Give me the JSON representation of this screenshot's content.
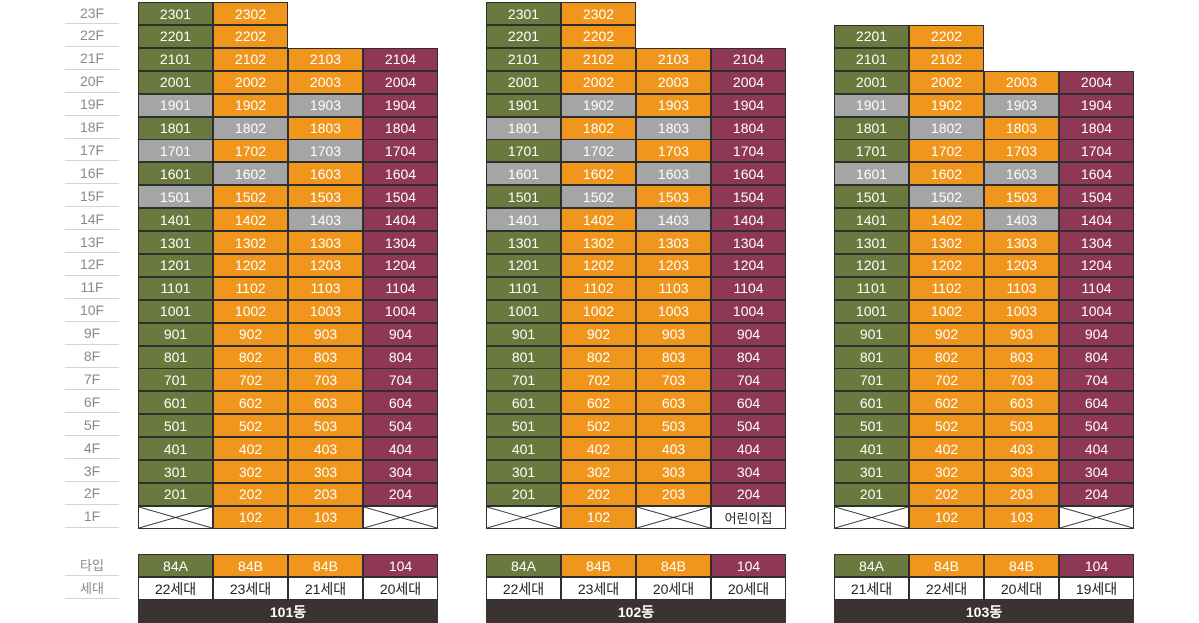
{
  "labels": {
    "type": "타입",
    "households": "세대"
  },
  "floors": [
    "23F",
    "22F",
    "21F",
    "20F",
    "19F",
    "18F",
    "17F",
    "16F",
    "15F",
    "14F",
    "13F",
    "12F",
    "11F",
    "10F",
    "9F",
    "8F",
    "7F",
    "6F",
    "5F",
    "4F",
    "3F",
    "2F",
    "1F"
  ],
  "colors": {
    "G": "#6a7a3f",
    "O": "#f0961c",
    "P": "#8e3856",
    "S": "#a5a5a5"
  },
  "buildings": [
    {
      "name": "101동",
      "types": [
        {
          "label": "84A",
          "color": "G"
        },
        {
          "label": "84B",
          "color": "O"
        },
        {
          "label": "84B",
          "color": "O"
        },
        {
          "label": "104",
          "color": "P"
        }
      ],
      "households": [
        "22세대",
        "23세대",
        "21세대",
        "20세대"
      ],
      "floors": [
        [
          [
            "2301",
            "G"
          ],
          [
            "2302",
            "O"
          ],
          null,
          null
        ],
        [
          [
            "2201",
            "G"
          ],
          [
            "2202",
            "O"
          ],
          null,
          null
        ],
        [
          [
            "2101",
            "G"
          ],
          [
            "2102",
            "O"
          ],
          [
            "2103",
            "O"
          ],
          [
            "2104",
            "P"
          ]
        ],
        [
          [
            "2001",
            "G"
          ],
          [
            "2002",
            "O"
          ],
          [
            "2003",
            "O"
          ],
          [
            "2004",
            "P"
          ]
        ],
        [
          [
            "1901",
            "S"
          ],
          [
            "1902",
            "O"
          ],
          [
            "1903",
            "S"
          ],
          [
            "1904",
            "P"
          ]
        ],
        [
          [
            "1801",
            "G"
          ],
          [
            "1802",
            "S"
          ],
          [
            "1803",
            "O"
          ],
          [
            "1804",
            "P"
          ]
        ],
        [
          [
            "1701",
            "S"
          ],
          [
            "1702",
            "O"
          ],
          [
            "1703",
            "S"
          ],
          [
            "1704",
            "P"
          ]
        ],
        [
          [
            "1601",
            "G"
          ],
          [
            "1602",
            "S"
          ],
          [
            "1603",
            "O"
          ],
          [
            "1604",
            "P"
          ]
        ],
        [
          [
            "1501",
            "S"
          ],
          [
            "1502",
            "O"
          ],
          [
            "1503",
            "O"
          ],
          [
            "1504",
            "P"
          ]
        ],
        [
          [
            "1401",
            "G"
          ],
          [
            "1402",
            "O"
          ],
          [
            "1403",
            "S"
          ],
          [
            "1404",
            "P"
          ]
        ],
        [
          [
            "1301",
            "G"
          ],
          [
            "1302",
            "O"
          ],
          [
            "1303",
            "O"
          ],
          [
            "1304",
            "P"
          ]
        ],
        [
          [
            "1201",
            "G"
          ],
          [
            "1202",
            "O"
          ],
          [
            "1203",
            "O"
          ],
          [
            "1204",
            "P"
          ]
        ],
        [
          [
            "1101",
            "G"
          ],
          [
            "1102",
            "O"
          ],
          [
            "1103",
            "O"
          ],
          [
            "1104",
            "P"
          ]
        ],
        [
          [
            "1001",
            "G"
          ],
          [
            "1002",
            "O"
          ],
          [
            "1003",
            "O"
          ],
          [
            "1004",
            "P"
          ]
        ],
        [
          [
            "901",
            "G"
          ],
          [
            "902",
            "O"
          ],
          [
            "903",
            "O"
          ],
          [
            "904",
            "P"
          ]
        ],
        [
          [
            "801",
            "G"
          ],
          [
            "802",
            "O"
          ],
          [
            "803",
            "O"
          ],
          [
            "804",
            "P"
          ]
        ],
        [
          [
            "701",
            "G"
          ],
          [
            "702",
            "O"
          ],
          [
            "703",
            "O"
          ],
          [
            "704",
            "P"
          ]
        ],
        [
          [
            "601",
            "G"
          ],
          [
            "602",
            "O"
          ],
          [
            "603",
            "O"
          ],
          [
            "604",
            "P"
          ]
        ],
        [
          [
            "501",
            "G"
          ],
          [
            "502",
            "O"
          ],
          [
            "503",
            "O"
          ],
          [
            "504",
            "P"
          ]
        ],
        [
          [
            "401",
            "G"
          ],
          [
            "402",
            "O"
          ],
          [
            "403",
            "O"
          ],
          [
            "404",
            "P"
          ]
        ],
        [
          [
            "301",
            "G"
          ],
          [
            "302",
            "O"
          ],
          [
            "303",
            "O"
          ],
          [
            "304",
            "P"
          ]
        ],
        [
          [
            "201",
            "G"
          ],
          [
            "202",
            "O"
          ],
          [
            "203",
            "O"
          ],
          [
            "204",
            "P"
          ]
        ],
        [
          [
            "",
            "X"
          ],
          [
            "102",
            "O"
          ],
          [
            "103",
            "O"
          ],
          [
            "",
            "X"
          ]
        ]
      ]
    },
    {
      "name": "102동",
      "types": [
        {
          "label": "84A",
          "color": "G"
        },
        {
          "label": "84B",
          "color": "O"
        },
        {
          "label": "84B",
          "color": "O"
        },
        {
          "label": "104",
          "color": "P"
        }
      ],
      "households": [
        "22세대",
        "23세대",
        "20세대",
        "20세대"
      ],
      "floors": [
        [
          [
            "2301",
            "G"
          ],
          [
            "2302",
            "O"
          ],
          null,
          null
        ],
        [
          [
            "2201",
            "G"
          ],
          [
            "2202",
            "O"
          ],
          null,
          null
        ],
        [
          [
            "2101",
            "G"
          ],
          [
            "2102",
            "O"
          ],
          [
            "2103",
            "O"
          ],
          [
            "2104",
            "P"
          ]
        ],
        [
          [
            "2001",
            "G"
          ],
          [
            "2002",
            "O"
          ],
          [
            "2003",
            "O"
          ],
          [
            "2004",
            "P"
          ]
        ],
        [
          [
            "1901",
            "G"
          ],
          [
            "1902",
            "S"
          ],
          [
            "1903",
            "O"
          ],
          [
            "1904",
            "P"
          ]
        ],
        [
          [
            "1801",
            "S"
          ],
          [
            "1802",
            "O"
          ],
          [
            "1803",
            "S"
          ],
          [
            "1804",
            "P"
          ]
        ],
        [
          [
            "1701",
            "G"
          ],
          [
            "1702",
            "S"
          ],
          [
            "1703",
            "O"
          ],
          [
            "1704",
            "P"
          ]
        ],
        [
          [
            "1601",
            "S"
          ],
          [
            "1602",
            "O"
          ],
          [
            "1603",
            "S"
          ],
          [
            "1604",
            "P"
          ]
        ],
        [
          [
            "1501",
            "G"
          ],
          [
            "1502",
            "S"
          ],
          [
            "1503",
            "O"
          ],
          [
            "1504",
            "P"
          ]
        ],
        [
          [
            "1401",
            "S"
          ],
          [
            "1402",
            "O"
          ],
          [
            "1403",
            "S"
          ],
          [
            "1404",
            "P"
          ]
        ],
        [
          [
            "1301",
            "G"
          ],
          [
            "1302",
            "O"
          ],
          [
            "1303",
            "O"
          ],
          [
            "1304",
            "P"
          ]
        ],
        [
          [
            "1201",
            "G"
          ],
          [
            "1202",
            "O"
          ],
          [
            "1203",
            "O"
          ],
          [
            "1204",
            "P"
          ]
        ],
        [
          [
            "1101",
            "G"
          ],
          [
            "1102",
            "O"
          ],
          [
            "1103",
            "O"
          ],
          [
            "1104",
            "P"
          ]
        ],
        [
          [
            "1001",
            "G"
          ],
          [
            "1002",
            "O"
          ],
          [
            "1003",
            "O"
          ],
          [
            "1004",
            "P"
          ]
        ],
        [
          [
            "901",
            "G"
          ],
          [
            "902",
            "O"
          ],
          [
            "903",
            "O"
          ],
          [
            "904",
            "P"
          ]
        ],
        [
          [
            "801",
            "G"
          ],
          [
            "802",
            "O"
          ],
          [
            "803",
            "O"
          ],
          [
            "804",
            "P"
          ]
        ],
        [
          [
            "701",
            "G"
          ],
          [
            "702",
            "O"
          ],
          [
            "703",
            "O"
          ],
          [
            "704",
            "P"
          ]
        ],
        [
          [
            "601",
            "G"
          ],
          [
            "602",
            "O"
          ],
          [
            "603",
            "O"
          ],
          [
            "604",
            "P"
          ]
        ],
        [
          [
            "501",
            "G"
          ],
          [
            "502",
            "O"
          ],
          [
            "503",
            "O"
          ],
          [
            "504",
            "P"
          ]
        ],
        [
          [
            "401",
            "G"
          ],
          [
            "402",
            "O"
          ],
          [
            "403",
            "O"
          ],
          [
            "404",
            "P"
          ]
        ],
        [
          [
            "301",
            "G"
          ],
          [
            "302",
            "O"
          ],
          [
            "303",
            "O"
          ],
          [
            "304",
            "P"
          ]
        ],
        [
          [
            "201",
            "G"
          ],
          [
            "202",
            "O"
          ],
          [
            "203",
            "O"
          ],
          [
            "204",
            "P"
          ]
        ],
        [
          [
            "",
            "X"
          ],
          [
            "102",
            "O"
          ],
          [
            "",
            "X"
          ],
          [
            "어린이집",
            "T"
          ]
        ]
      ]
    },
    {
      "name": "103동",
      "types": [
        {
          "label": "84A",
          "color": "G"
        },
        {
          "label": "84B",
          "color": "O"
        },
        {
          "label": "84B",
          "color": "O"
        },
        {
          "label": "104",
          "color": "P"
        }
      ],
      "households": [
        "21세대",
        "22세대",
        "20세대",
        "19세대"
      ],
      "floors": [
        [
          null,
          null,
          null,
          null
        ],
        [
          [
            "2201",
            "G"
          ],
          [
            "2202",
            "O"
          ],
          null,
          null
        ],
        [
          [
            "2101",
            "G"
          ],
          [
            "2102",
            "O"
          ],
          null,
          null
        ],
        [
          [
            "2001",
            "G"
          ],
          [
            "2002",
            "O"
          ],
          [
            "2003",
            "O"
          ],
          [
            "2004",
            "P"
          ]
        ],
        [
          [
            "1901",
            "S"
          ],
          [
            "1902",
            "O"
          ],
          [
            "1903",
            "S"
          ],
          [
            "1904",
            "P"
          ]
        ],
        [
          [
            "1801",
            "G"
          ],
          [
            "1802",
            "S"
          ],
          [
            "1803",
            "O"
          ],
          [
            "1804",
            "P"
          ]
        ],
        [
          [
            "1701",
            "G"
          ],
          [
            "1702",
            "O"
          ],
          [
            "1703",
            "O"
          ],
          [
            "1704",
            "P"
          ]
        ],
        [
          [
            "1601",
            "S"
          ],
          [
            "1602",
            "O"
          ],
          [
            "1603",
            "S"
          ],
          [
            "1604",
            "P"
          ]
        ],
        [
          [
            "1501",
            "G"
          ],
          [
            "1502",
            "S"
          ],
          [
            "1503",
            "O"
          ],
          [
            "1504",
            "P"
          ]
        ],
        [
          [
            "1401",
            "G"
          ],
          [
            "1402",
            "O"
          ],
          [
            "1403",
            "S"
          ],
          [
            "1404",
            "P"
          ]
        ],
        [
          [
            "1301",
            "G"
          ],
          [
            "1302",
            "O"
          ],
          [
            "1303",
            "O"
          ],
          [
            "1304",
            "P"
          ]
        ],
        [
          [
            "1201",
            "G"
          ],
          [
            "1202",
            "O"
          ],
          [
            "1203",
            "O"
          ],
          [
            "1204",
            "P"
          ]
        ],
        [
          [
            "1101",
            "G"
          ],
          [
            "1102",
            "O"
          ],
          [
            "1103",
            "O"
          ],
          [
            "1104",
            "P"
          ]
        ],
        [
          [
            "1001",
            "G"
          ],
          [
            "1002",
            "O"
          ],
          [
            "1003",
            "O"
          ],
          [
            "1004",
            "P"
          ]
        ],
        [
          [
            "901",
            "G"
          ],
          [
            "902",
            "O"
          ],
          [
            "903",
            "O"
          ],
          [
            "904",
            "P"
          ]
        ],
        [
          [
            "801",
            "G"
          ],
          [
            "802",
            "O"
          ],
          [
            "803",
            "O"
          ],
          [
            "804",
            "P"
          ]
        ],
        [
          [
            "701",
            "G"
          ],
          [
            "702",
            "O"
          ],
          [
            "703",
            "O"
          ],
          [
            "704",
            "P"
          ]
        ],
        [
          [
            "601",
            "G"
          ],
          [
            "602",
            "O"
          ],
          [
            "603",
            "O"
          ],
          [
            "604",
            "P"
          ]
        ],
        [
          [
            "501",
            "G"
          ],
          [
            "502",
            "O"
          ],
          [
            "503",
            "O"
          ],
          [
            "504",
            "P"
          ]
        ],
        [
          [
            "401",
            "G"
          ],
          [
            "402",
            "O"
          ],
          [
            "403",
            "O"
          ],
          [
            "404",
            "P"
          ]
        ],
        [
          [
            "301",
            "G"
          ],
          [
            "302",
            "O"
          ],
          [
            "303",
            "O"
          ],
          [
            "304",
            "P"
          ]
        ],
        [
          [
            "201",
            "G"
          ],
          [
            "202",
            "O"
          ],
          [
            "203",
            "O"
          ],
          [
            "204",
            "P"
          ]
        ],
        [
          [
            "",
            "X"
          ],
          [
            "102",
            "O"
          ],
          [
            "103",
            "O"
          ],
          [
            "",
            "X"
          ]
        ]
      ]
    }
  ]
}
